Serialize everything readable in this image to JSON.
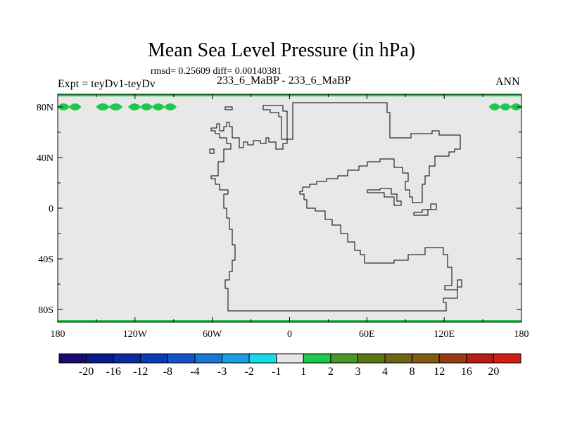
{
  "title": "Mean Sea Level Pressure (in hPa)",
  "stats": "rmsd= 0.25609 diff= 0.00140381",
  "expt_label": "Expt = teyDv1-teyDv",
  "comparison_label": "233_6_MaBP - 233_6_MaBP",
  "season": "ANN",
  "colors": {
    "background_field": "#e8e8e8",
    "contour_band": "#1ec84a",
    "coastline": "#000000"
  },
  "chart_data": {
    "type": "heatmap",
    "title": "Mean Sea Level Pressure (in hPa)",
    "xlim": [
      -180,
      180
    ],
    "ylim": [
      -90,
      90
    ],
    "x_ticks": [
      {
        "value": -180,
        "label": "180"
      },
      {
        "value": -120,
        "label": "120W"
      },
      {
        "value": -60,
        "label": "60W"
      },
      {
        "value": 0,
        "label": "0"
      },
      {
        "value": 60,
        "label": "60E"
      },
      {
        "value": 120,
        "label": "120E"
      },
      {
        "value": 180,
        "label": "180"
      }
    ],
    "y_ticks": [
      {
        "value": 80,
        "label": "80N"
      },
      {
        "value": 40,
        "label": "40N"
      },
      {
        "value": 0,
        "label": "0"
      },
      {
        "value": -40,
        "label": "40S"
      },
      {
        "value": -80,
        "label": "80S"
      }
    ],
    "colorbar": {
      "colors": [
        "#1a0a6e",
        "#0a1a8c",
        "#0a2aa0",
        "#0a3cb4",
        "#1454c8",
        "#1a78d2",
        "#1aa0e0",
        "#16dce6",
        "#e6e6e6",
        "#1ec84a",
        "#4a9628",
        "#5a7814",
        "#6e6414",
        "#825a14",
        "#963c14",
        "#b41e14",
        "#d21e14"
      ],
      "labels": [
        "-20",
        "-16",
        "-12",
        "-8",
        "-4",
        "-3",
        "-2",
        "-1",
        "1",
        "2",
        "3",
        "4",
        "8",
        "12",
        "16",
        "20"
      ]
    },
    "field_summary": "difference near zero everywhere (1 to 2 hPa band only near 80N and along polar edges)",
    "green_band_lon_ranges": [
      [
        -180,
        -162
      ],
      [
        -150,
        -130
      ],
      [
        -125,
        -88
      ],
      [
        155,
        180
      ]
    ],
    "green_band_lat": 80,
    "continent_outline": [
      [
        -5,
        82
      ],
      [
        7,
        82
      ],
      [
        7,
        79
      ],
      [
        -5,
        79
      ],
      [
        -5,
        82
      ]
    ]
  }
}
